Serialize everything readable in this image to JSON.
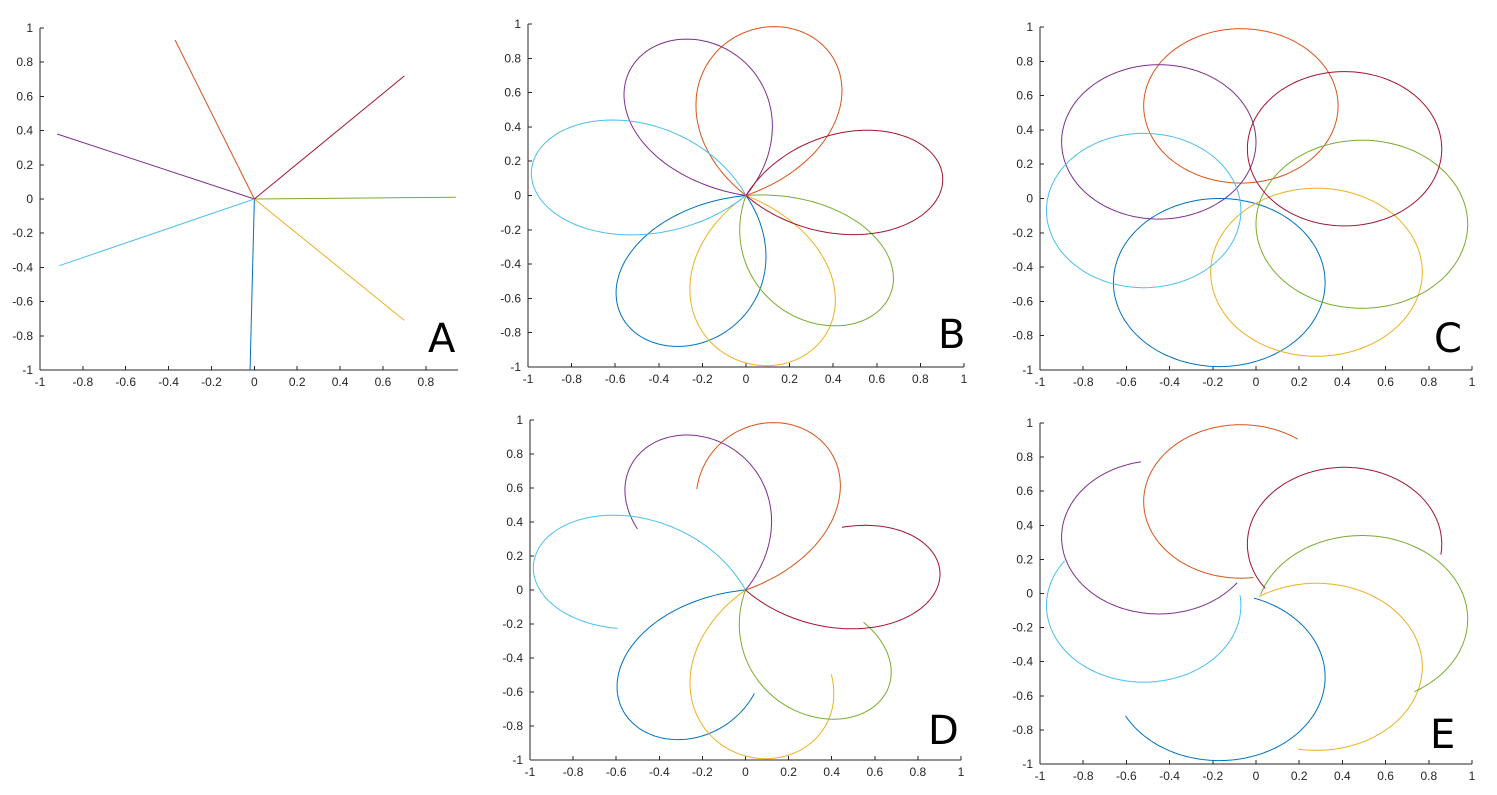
{
  "figure": {
    "series_colors": [
      "#0072BD",
      "#D95319",
      "#EDB120",
      "#7E2F8E",
      "#77AC30",
      "#4DBEEE",
      "#A2142F"
    ]
  },
  "chart_data": [
    {
      "panel": "A",
      "type": "line",
      "xlim": [
        -1,
        0.95
      ],
      "ylim": [
        -1,
        1
      ],
      "xticks": [
        "-1",
        "-0.8",
        "-0.6",
        "-0.4",
        "-0.2",
        "0",
        "0.2",
        "0.4",
        "0.6",
        "0.8"
      ],
      "yticks": [
        "-1",
        "-0.8",
        "-0.6",
        "-0.4",
        "-0.2",
        "0",
        "0.2",
        "0.4",
        "0.6",
        "0.8",
        "1"
      ],
      "grid": false,
      "series": [
        {
          "color": "#0072BD",
          "x": [
            0,
            -0.02
          ],
          "y": [
            0,
            -1.0
          ]
        },
        {
          "color": "#D95319",
          "x": [
            0,
            -0.37
          ],
          "y": [
            0,
            0.93
          ]
        },
        {
          "color": "#EDB120",
          "x": [
            0,
            0.7
          ],
          "y": [
            0,
            -0.71
          ]
        },
        {
          "color": "#7E2F8E",
          "x": [
            0,
            -0.92
          ],
          "y": [
            0,
            0.38
          ]
        },
        {
          "color": "#77AC30",
          "x": [
            0,
            0.94
          ],
          "y": [
            0,
            0.01
          ]
        },
        {
          "color": "#4DBEEE",
          "x": [
            0,
            -0.91
          ],
          "y": [
            0,
            -0.39
          ]
        },
        {
          "color": "#A2142F",
          "x": [
            0,
            0.7
          ],
          "y": [
            0,
            0.72
          ]
        }
      ]
    },
    {
      "panel": "B",
      "type": "line",
      "xlim": [
        -1,
        1
      ],
      "ylim": [
        -1,
        1
      ],
      "xticks": [
        "-1",
        "-0.8",
        "-0.6",
        "-0.4",
        "-0.2",
        "0",
        "0.2",
        "0.4",
        "0.6",
        "0.8",
        "1"
      ],
      "yticks": [
        "-1",
        "-0.8",
        "-0.6",
        "-0.4",
        "-0.2",
        "0",
        "0.2",
        "0.4",
        "0.6",
        "0.8",
        "1"
      ],
      "grid": false,
      "curve": {
        "kind": "closed-loop",
        "rotation_step_deg": 51.43,
        "loops": 7
      },
      "series": [
        {
          "color": "#0072BD",
          "peak": [
            -0.44,
            -0.85
          ]
        },
        {
          "color": "#D95319",
          "peak": [
            0.18,
            0.98
          ]
        },
        {
          "color": "#EDB120",
          "peak": [
            0.13,
            -0.99
          ]
        },
        {
          "color": "#7E2F8E",
          "peak": [
            -0.38,
            0.89
          ]
        },
        {
          "color": "#77AC30",
          "peak": [
            0.58,
            -0.7
          ]
        },
        {
          "color": "#4DBEEE",
          "peak": [
            -0.98,
            0.18
          ]
        },
        {
          "color": "#A2142F",
          "peak": [
            0.9,
            0.13
          ]
        }
      ]
    },
    {
      "panel": "C",
      "type": "line",
      "xlim": [
        -1,
        1
      ],
      "ylim": [
        -1,
        1
      ],
      "xticks": [
        "-1",
        "-0.8",
        "-0.6",
        "-0.4",
        "-0.2",
        "0",
        "0.2",
        "0.4",
        "0.6",
        "0.8",
        "1"
      ],
      "yticks": [
        "-1",
        "-0.8",
        "-0.6",
        "-0.4",
        "-0.2",
        "0",
        "0.2",
        "0.4",
        "0.6",
        "0.8",
        "1"
      ],
      "grid": false,
      "curve": {
        "kind": "closed-circle",
        "loops": 7
      },
      "series": [
        {
          "color": "#0072BD",
          "center": [
            -0.17,
            -0.49
          ],
          "radius": 0.49
        },
        {
          "color": "#D95319",
          "center": [
            -0.07,
            0.54
          ],
          "radius": 0.45
        },
        {
          "color": "#EDB120",
          "center": [
            0.28,
            -0.43
          ],
          "radius": 0.49
        },
        {
          "color": "#7E2F8E",
          "center": [
            -0.45,
            0.33
          ],
          "radius": 0.45
        },
        {
          "color": "#77AC30",
          "center": [
            0.49,
            -0.15
          ],
          "radius": 0.49
        },
        {
          "color": "#4DBEEE",
          "center": [
            -0.52,
            -0.07
          ],
          "radius": 0.45
        },
        {
          "color": "#A2142F",
          "center": [
            0.41,
            0.29
          ],
          "radius": 0.45
        }
      ]
    },
    {
      "panel": "D",
      "type": "line",
      "xlim": [
        -1,
        1
      ],
      "ylim": [
        -1,
        1
      ],
      "xticks": [
        "-1",
        "-0.8",
        "-0.6",
        "-0.4",
        "-0.2",
        "0",
        "0.2",
        "0.4",
        "0.6",
        "0.8",
        "1"
      ],
      "yticks": [
        "-1",
        "-0.8",
        "-0.6",
        "-0.4",
        "-0.2",
        "0",
        "0.2",
        "0.4",
        "0.6",
        "0.8",
        "1"
      ],
      "grid": false,
      "curve": {
        "kind": "open-spiral-arc",
        "loops": 7
      },
      "series": [
        {
          "color": "#0072BD",
          "peak": [
            -0.44,
            -0.85
          ]
        },
        {
          "color": "#D95319",
          "peak": [
            0.18,
            0.98
          ]
        },
        {
          "color": "#EDB120",
          "peak": [
            0.13,
            -0.99
          ]
        },
        {
          "color": "#7E2F8E",
          "peak": [
            -0.38,
            0.89
          ]
        },
        {
          "color": "#77AC30",
          "peak": [
            0.58,
            -0.7
          ]
        },
        {
          "color": "#4DBEEE",
          "peak": [
            -0.98,
            0.18
          ]
        },
        {
          "color": "#A2142F",
          "peak": [
            0.9,
            0.13
          ]
        }
      ]
    },
    {
      "panel": "E",
      "type": "line",
      "xlim": [
        -1,
        1
      ],
      "ylim": [
        -1,
        1
      ],
      "xticks": [
        "-1",
        "-0.8",
        "-0.6",
        "-0.4",
        "-0.2",
        "0",
        "0.2",
        "0.4",
        "0.6",
        "0.8",
        "1"
      ],
      "yticks": [
        "-1",
        "-0.8",
        "-0.6",
        "-0.4",
        "-0.2",
        "0",
        "0.2",
        "0.4",
        "0.6",
        "0.8",
        "1"
      ],
      "grid": false,
      "curve": {
        "kind": "open-circle-arc",
        "loops": 7
      },
      "series": [
        {
          "color": "#0072BD",
          "center": [
            -0.17,
            -0.49
          ],
          "radius": 0.49
        },
        {
          "color": "#D95319",
          "center": [
            -0.07,
            0.54
          ],
          "radius": 0.45
        },
        {
          "color": "#EDB120",
          "center": [
            0.28,
            -0.43
          ],
          "radius": 0.49
        },
        {
          "color": "#7E2F8E",
          "center": [
            -0.45,
            0.33
          ],
          "radius": 0.45
        },
        {
          "color": "#77AC30",
          "center": [
            0.49,
            -0.15
          ],
          "radius": 0.49
        },
        {
          "color": "#4DBEEE",
          "center": [
            -0.52,
            -0.07
          ],
          "radius": 0.45
        },
        {
          "color": "#A2142F",
          "center": [
            0.41,
            0.29
          ],
          "radius": 0.45
        }
      ]
    }
  ]
}
